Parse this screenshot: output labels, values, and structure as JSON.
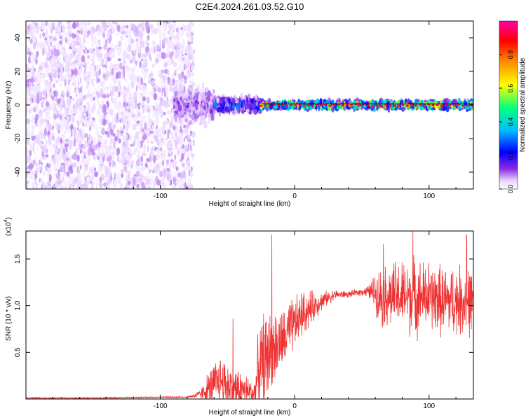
{
  "title": "C2E4.2024.261.03.52.G10",
  "colors": {
    "spectrum": "#7b1fe8",
    "snr_line": "#ee3333",
    "frame": "#000000",
    "zero_line": "#000000"
  },
  "chart_data": [
    {
      "type": "heatmap",
      "name_key": "spectrogram",
      "title": "C2E4.2024.261.03.52.G10",
      "xlabel": "Height of straight line (km)",
      "ylabel": "Frequency (Hz)",
      "xlim": [
        -200,
        133
      ],
      "ylim": [
        -50,
        50
      ],
      "x_ticks": [
        -100,
        0,
        100
      ],
      "x_tick_labels": [
        "-100",
        "0",
        "100"
      ],
      "y_ticks": [
        -40,
        -20,
        0,
        20,
        40
      ],
      "y_tick_labels": [
        "-40",
        "-20",
        "0",
        "20",
        "40"
      ],
      "colorbar": {
        "label": "Normalized spectral amplitude",
        "range": [
          0,
          1
        ],
        "ticks": [
          0.0,
          0.2,
          0.4,
          0.6,
          0.8
        ],
        "tick_labels": [
          "0.0",
          "0.2",
          "0.4",
          "0.6",
          "0.8"
        ],
        "colormap": [
          "#ffffff",
          "#e4ccff",
          "#8a2be2",
          "#0000ff",
          "#00ccff",
          "#00ff66",
          "#ffff00",
          "#ff8800",
          "#ff0000",
          "#ff00a0"
        ]
      },
      "regions": [
        {
          "x_range": [
            -200,
            -75
          ],
          "description_values": {
            "amplitude": 0.1,
            "freq_spread": 50
          }
        },
        {
          "x_range": [
            -90,
            -60
          ],
          "description_values": {
            "amplitude": 0.25,
            "freq_spread": 14
          }
        },
        {
          "x_range": [
            -60,
            -25
          ],
          "description_values": {
            "amplitude": 0.4,
            "freq_spread": 6
          }
        },
        {
          "x_range": [
            -25,
            133
          ],
          "description_values": {
            "amplitude": 0.8,
            "freq_spread": 3
          }
        }
      ],
      "ridge_line": {
        "x": [
          -25,
          133
        ],
        "y": [
          0,
          0
        ]
      }
    },
    {
      "type": "line",
      "name_key": "snr",
      "xlabel": "Height of straight line (km)",
      "ylabel": "SNR (10 * v/v)",
      "y_multiplier_label": "(x10",
      "y_multiplier_exp": "4",
      "y_multiplier_close": ")",
      "xlim": [
        -200,
        133
      ],
      "ylim": [
        0,
        1.8
      ],
      "x_ticks": [
        -100,
        0,
        100
      ],
      "x_tick_labels": [
        "-100",
        "0",
        "100"
      ],
      "y_ticks": [
        0.5,
        1.0,
        1.5
      ],
      "y_tick_labels": [
        "0.5",
        "1.0",
        "1.5"
      ],
      "series": [
        {
          "envelope": {
            "x": [
              -200,
              -150,
              -100,
              -80,
              -70,
              -65,
              -60,
              -55,
              -50,
              -45,
              -40,
              -35,
              -30,
              -27,
              -25,
              -22,
              -20,
              -18,
              -15,
              -10,
              -5,
              0,
              5,
              10,
              20,
              30,
              40,
              50,
              55,
              60,
              65,
              70,
              75,
              80,
              85,
              90,
              95,
              100,
              110,
              120,
              133
            ],
            "base": [
              0.01,
              0.01,
              0.02,
              0.02,
              0.05,
              0.1,
              0.15,
              0.2,
              0.15,
              0.12,
              0.1,
              0.08,
              0.05,
              0.3,
              0.35,
              0.4,
              0.45,
              0.55,
              0.55,
              0.6,
              0.7,
              0.8,
              0.9,
              0.95,
              1.05,
              1.12,
              1.12,
              1.15,
              1.15,
              1.15,
              1.1,
              1.1,
              1.1,
              1.1,
              1.1,
              1.1,
              1.1,
              1.1,
              1.05,
              1.05,
              1.05
            ],
            "amp": [
              0.01,
              0.01,
              0.01,
              0.01,
              0.06,
              0.2,
              0.3,
              0.35,
              0.35,
              0.3,
              0.25,
              0.2,
              0.2,
              0.5,
              0.6,
              0.7,
              0.6,
              0.45,
              0.5,
              0.4,
              0.4,
              0.35,
              0.3,
              0.25,
              0.12,
              0.06,
              0.04,
              0.05,
              0.08,
              0.25,
              0.4,
              0.4,
              0.45,
              0.45,
              0.5,
              0.5,
              0.45,
              0.45,
              0.45,
              0.45,
              0.45
            ]
          },
          "peaks": [
            {
              "x": -46,
              "y": 0.86
            },
            {
              "x": -17,
              "y": 1.76
            },
            {
              "x": 88,
              "y": 1.82
            },
            {
              "x": 128,
              "y": 1.76
            },
            {
              "x": 66,
              "y": 1.66
            }
          ]
        }
      ]
    }
  ]
}
